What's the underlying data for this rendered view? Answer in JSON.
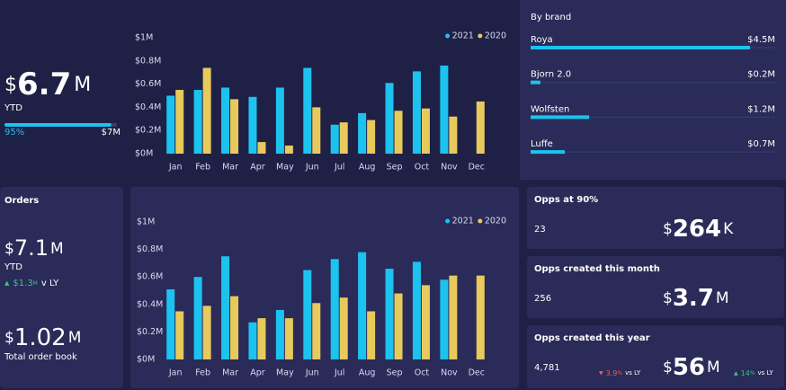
{
  "chart_data": [
    {
      "type": "bar",
      "categories": [
        "Jan",
        "Feb",
        "Mar",
        "Apr",
        "May",
        "Jun",
        "Jul",
        "Aug",
        "Sep",
        "Oct",
        "Nov",
        "Dec"
      ],
      "series": [
        {
          "name": "2021",
          "color": "#1cc3ef",
          "values": [
            0.5,
            0.55,
            0.57,
            0.49,
            0.57,
            0.74,
            0.25,
            0.35,
            0.61,
            0.71,
            0.76,
            null
          ]
        },
        {
          "name": "2020",
          "color": "#e8c95c",
          "values": [
            0.55,
            0.74,
            0.47,
            0.1,
            0.07,
            0.4,
            0.27,
            0.29,
            0.37,
            0.39,
            0.32,
            0.45
          ]
        }
      ],
      "ylim": [
        0,
        1
      ],
      "yticks": [
        {
          "value": 0,
          "label": "$0M"
        },
        {
          "value": 0.2,
          "label": "$0.2M"
        },
        {
          "value": 0.4,
          "label": "$0.4M"
        },
        {
          "value": 0.6,
          "label": "$0.6M"
        },
        {
          "value": 0.8,
          "label": "$0.8M"
        },
        {
          "value": 1,
          "label": "$1M"
        }
      ],
      "grid": false,
      "legend": "top-right"
    },
    {
      "type": "bar",
      "categories": [
        "Jan",
        "Feb",
        "Mar",
        "Apr",
        "May",
        "Jun",
        "Jul",
        "Aug",
        "Sep",
        "Oct",
        "Nov",
        "Dec"
      ],
      "series": [
        {
          "name": "2021",
          "color": "#1cc3ef",
          "values": [
            0.51,
            0.6,
            0.75,
            0.27,
            0.36,
            0.65,
            0.73,
            0.78,
            0.66,
            0.71,
            0.58,
            null
          ]
        },
        {
          "name": "2020",
          "color": "#e8c95c",
          "values": [
            0.35,
            0.39,
            0.46,
            0.3,
            0.3,
            0.41,
            0.45,
            0.35,
            0.48,
            0.54,
            0.61,
            0.61
          ]
        }
      ],
      "ylim": [
        0,
        1
      ],
      "yticks": [
        {
          "value": 0,
          "label": "$0M"
        },
        {
          "value": 0.2,
          "label": "$0.2M"
        },
        {
          "value": 0.4,
          "label": "$0.4M"
        },
        {
          "value": 0.6,
          "label": "$0.6M"
        },
        {
          "value": 0.8,
          "label": "$0.8M"
        },
        {
          "value": 1,
          "label": "$1M"
        }
      ],
      "grid": false,
      "legend": "top-right"
    }
  ],
  "ytd": {
    "currency": "$",
    "value": "6.7",
    "unit": "M",
    "label": "YTD",
    "progress": {
      "value": 95,
      "label": "95%",
      "max_label": "$7M"
    }
  },
  "brand": {
    "title": "By brand",
    "xlim": [
      0,
      4.5
    ],
    "color": "#1cc3ef",
    "items": [
      {
        "name": "Roya",
        "value": 4.5,
        "value_label": "$4.5M"
      },
      {
        "name": "Bjorn 2.0",
        "value": 0.2,
        "value_label": "$0.2M"
      },
      {
        "name": "Wolfsten",
        "value": 1.2,
        "value_label": "$1.2M"
      },
      {
        "name": "Luffe",
        "value": 0.7,
        "value_label": "$0.7M"
      }
    ]
  },
  "orders": {
    "title": "Orders",
    "currency": "$",
    "value": "7.1",
    "unit": "M",
    "label": "YTD",
    "change": {
      "arrow": "▲",
      "value": "$1.3",
      "unit": "M",
      "suffix": "v LY"
    },
    "book": {
      "currency": "$",
      "value": "1.02",
      "unit": "M",
      "label": "Total order book"
    }
  },
  "opps": [
    {
      "title": "Opps at 90%",
      "count": "23",
      "currency": "$",
      "amount": "264",
      "unit": "K"
    },
    {
      "title": "Opps created this month",
      "count": "256",
      "currency": "$",
      "amount": "3.7",
      "unit": "M"
    },
    {
      "title": "Opps created this year",
      "count": "4,781",
      "count_change": {
        "arrow": "▼",
        "value": "3.9",
        "unit": "%",
        "suffix": "vs LY"
      },
      "currency": "$",
      "amount": "56",
      "unit": "M",
      "amount_change": {
        "arrow": "▲",
        "value": "14",
        "unit": "%",
        "suffix": "vs LY"
      }
    }
  ]
}
